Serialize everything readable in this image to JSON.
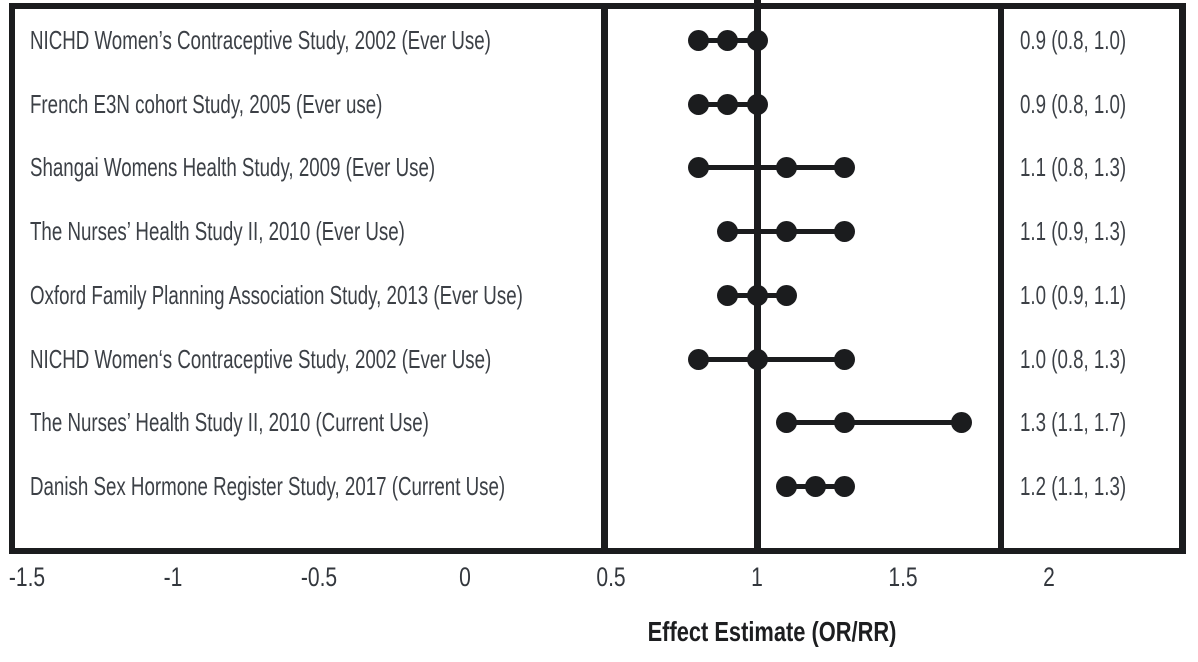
{
  "chart_data": {
    "type": "forest",
    "title": "",
    "xlabel": "Effect Estimate (OR/RR)",
    "x_tick_labels": [
      "-1.5",
      "-1",
      "-0.5",
      "0",
      "0.5",
      "1",
      "1.5",
      "2"
    ],
    "xlim": [
      -1.75,
      2.45
    ],
    "reference_line_x": 1,
    "grid": false,
    "legend": "none",
    "marker_style": "filled circle at ci_low, estimate and ci_high joined by line",
    "studies": [
      {
        "label": "NICHD Women’s Contraceptive Study, 2002 (Ever Use)",
        "estimate": 0.9,
        "ci_low": 0.8,
        "ci_high": 1.0,
        "estimate_text": "0.9 (0.8, 1.0)"
      },
      {
        "label": "French E3N cohort Study, 2005 (Ever use)",
        "estimate": 0.9,
        "ci_low": 0.8,
        "ci_high": 1.0,
        "estimate_text": "0.9 (0.8, 1.0)"
      },
      {
        "label": "Shangai Womens Health Study, 2009 (Ever Use)",
        "estimate": 1.1,
        "ci_low": 0.8,
        "ci_high": 1.3,
        "estimate_text": "1.1 (0.8, 1.3)"
      },
      {
        "label": "The Nurses’ Health Study II, 2010 (Ever Use)",
        "estimate": 1.1,
        "ci_low": 0.9,
        "ci_high": 1.3,
        "estimate_text": "1.1 (0.9, 1.3)"
      },
      {
        "label": "Oxford Family Planning Association Study, 2013 (Ever Use)",
        "estimate": 1.0,
        "ci_low": 0.9,
        "ci_high": 1.1,
        "estimate_text": "1.0 (0.9, 1.1)"
      },
      {
        "label": "NICHD Women‘s Contraceptive Study, 2002 (Ever Use)",
        "estimate": 1.0,
        "ci_low": 0.8,
        "ci_high": 1.3,
        "estimate_text": "1.0 (0.8, 1.3)"
      },
      {
        "label": "The Nurses’ Health Study II, 2010 (Current Use)",
        "estimate": 1.3,
        "ci_low": 1.1,
        "ci_high": 1.7,
        "estimate_text": "1.3 (1.1, 1.7)"
      },
      {
        "label": "Danish Sex Hormone Register Study, 2017 (Current Use)",
        "estimate": 1.2,
        "ci_low": 1.1,
        "ci_high": 1.3,
        "estimate_text": "1.2 (1.1, 1.3)"
      }
    ]
  },
  "colors": {
    "ink": "#1b1c1e",
    "text": "#3c4046",
    "background": "#ffffff"
  }
}
